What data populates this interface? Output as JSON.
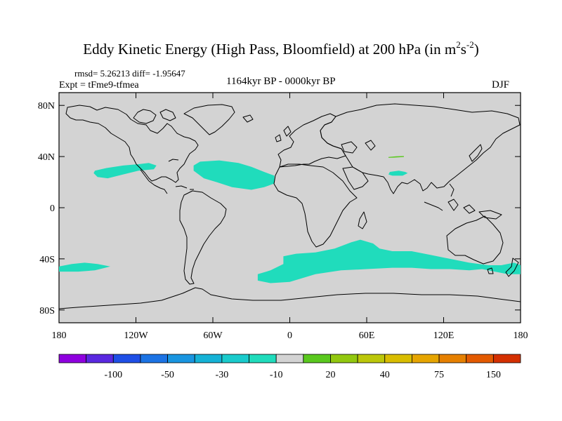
{
  "title": {
    "main": "Eddy Kinetic Energy (High Pass, Bloomfield) at 200 hPa (in m",
    "sup1": "2",
    "mid": "s",
    "sup2": "-2",
    "end": ")"
  },
  "stats": {
    "rmsd_label": "rmsd= 5.26213 diff= -1.95647"
  },
  "expt": {
    "label": "Expt = tFme9-tfmea"
  },
  "period": {
    "label": "1164kyr BP - 0000kyr BP"
  },
  "season": {
    "label": "DJF"
  },
  "map": {
    "projection": "cylindrical equidistant",
    "lon_range": [
      -180,
      180
    ],
    "lat_range": [
      -90,
      90
    ],
    "land_sea_fill": "#d3d3d3",
    "anomaly_color": "#20dcbc",
    "positive_color": "#5ac81e",
    "lat_ticks": [
      {
        "lat": 80,
        "label": "80N"
      },
      {
        "lat": 40,
        "label": "40N"
      },
      {
        "lat": 0,
        "label": "0"
      },
      {
        "lat": -40,
        "label": "40S"
      },
      {
        "lat": -80,
        "label": "80S"
      }
    ],
    "lon_ticks": [
      {
        "lon": -180,
        "label": "180"
      },
      {
        "lon": -120,
        "label": "120W"
      },
      {
        "lon": -60,
        "label": "60W"
      },
      {
        "lon": 0,
        "label": "0"
      },
      {
        "lon": 60,
        "label": "60E"
      },
      {
        "lon": 120,
        "label": "120E"
      },
      {
        "lon": 180,
        "label": "180"
      }
    ],
    "regions": [
      {
        "name": "north-pacific-negative-region",
        "value_range": "-10 to -30",
        "lonlat": [
          [
            -152,
            29
          ],
          [
            -143,
            31
          ],
          [
            -130,
            33
          ],
          [
            -118,
            34
          ],
          [
            -110,
            35
          ],
          [
            -104,
            33
          ],
          [
            -106,
            30
          ],
          [
            -118,
            29
          ],
          [
            -130,
            26
          ],
          [
            -142,
            23
          ],
          [
            -150,
            24
          ],
          [
            -153,
            27
          ]
        ]
      },
      {
        "name": "north-atlantic-negative-region",
        "value_range": "-10 to -30",
        "lonlat": [
          [
            -75,
            33
          ],
          [
            -70,
            36
          ],
          [
            -55,
            37
          ],
          [
            -40,
            35
          ],
          [
            -30,
            32
          ],
          [
            -20,
            28
          ],
          [
            -12,
            25
          ],
          [
            -12,
            19
          ],
          [
            -20,
            16
          ],
          [
            -30,
            14
          ],
          [
            -45,
            16
          ],
          [
            -57,
            20
          ],
          [
            -67,
            23
          ],
          [
            -75,
            29
          ]
        ]
      },
      {
        "name": "southern-ocean-negative-region",
        "value_range": "-10 to -30",
        "lonlat": [
          [
            -25,
            -52
          ],
          [
            -15,
            -49
          ],
          [
            -5,
            -44
          ],
          [
            -5,
            -38
          ],
          [
            5,
            -36
          ],
          [
            20,
            -35
          ],
          [
            35,
            -32
          ],
          [
            48,
            -27
          ],
          [
            55,
            -25
          ],
          [
            65,
            -28
          ],
          [
            70,
            -32
          ],
          [
            80,
            -34
          ],
          [
            95,
            -34
          ],
          [
            110,
            -37
          ],
          [
            125,
            -40
          ],
          [
            140,
            -43
          ],
          [
            155,
            -45
          ],
          [
            165,
            -45
          ],
          [
            175,
            -43
          ],
          [
            180,
            -45
          ],
          [
            180,
            -52
          ],
          [
            170,
            -52
          ],
          [
            160,
            -50
          ],
          [
            150,
            -48
          ],
          [
            140,
            -49
          ],
          [
            125,
            -48
          ],
          [
            110,
            -48
          ],
          [
            95,
            -47
          ],
          [
            80,
            -47
          ],
          [
            60,
            -48
          ],
          [
            40,
            -49
          ],
          [
            20,
            -52
          ],
          [
            0,
            -58
          ],
          [
            -15,
            -59
          ],
          [
            -25,
            -57
          ]
        ]
      },
      {
        "name": "south-pacific-negative-region",
        "value_range": "-10 to -30",
        "lonlat": [
          [
            -180,
            -46
          ],
          [
            -170,
            -44
          ],
          [
            -160,
            -43
          ],
          [
            -150,
            -44
          ],
          [
            -140,
            -46
          ],
          [
            -152,
            -49
          ],
          [
            -165,
            -50
          ],
          [
            -180,
            -50
          ]
        ]
      },
      {
        "name": "south-asia-negative-region",
        "value_range": "-10 to -30",
        "lonlat": [
          [
            78,
            28
          ],
          [
            85,
            29
          ],
          [
            90,
            28
          ],
          [
            92,
            27
          ],
          [
            88,
            25
          ],
          [
            80,
            25
          ],
          [
            77,
            26
          ]
        ]
      },
      {
        "name": "central-asia-positive-region",
        "value_range": "10 to 20",
        "lonlat": [
          [
            77,
            39.6
          ],
          [
            83,
            40.2
          ],
          [
            89,
            40.4
          ],
          [
            89,
            39.6
          ],
          [
            81,
            39.2
          ],
          [
            77,
            39
          ]
        ]
      }
    ]
  },
  "colorbar": {
    "colors": [
      "#8f00df",
      "#5a28e0",
      "#1f4fe6",
      "#1c73e4",
      "#1995e0",
      "#15b2d6",
      "#1acbcc",
      "#20dcbc",
      "#d3d3d3",
      "#5ac81e",
      "#92c80f",
      "#bcc70a",
      "#d9bd00",
      "#e6a500",
      "#e68000",
      "#e35a00",
      "#d43000"
    ],
    "labels": [
      "-100",
      "-50",
      "-30",
      "-10",
      "20",
      "40",
      "75",
      "150"
    ],
    "label_boundaries": [
      2,
      4,
      6,
      8,
      10,
      12,
      14,
      16
    ]
  }
}
